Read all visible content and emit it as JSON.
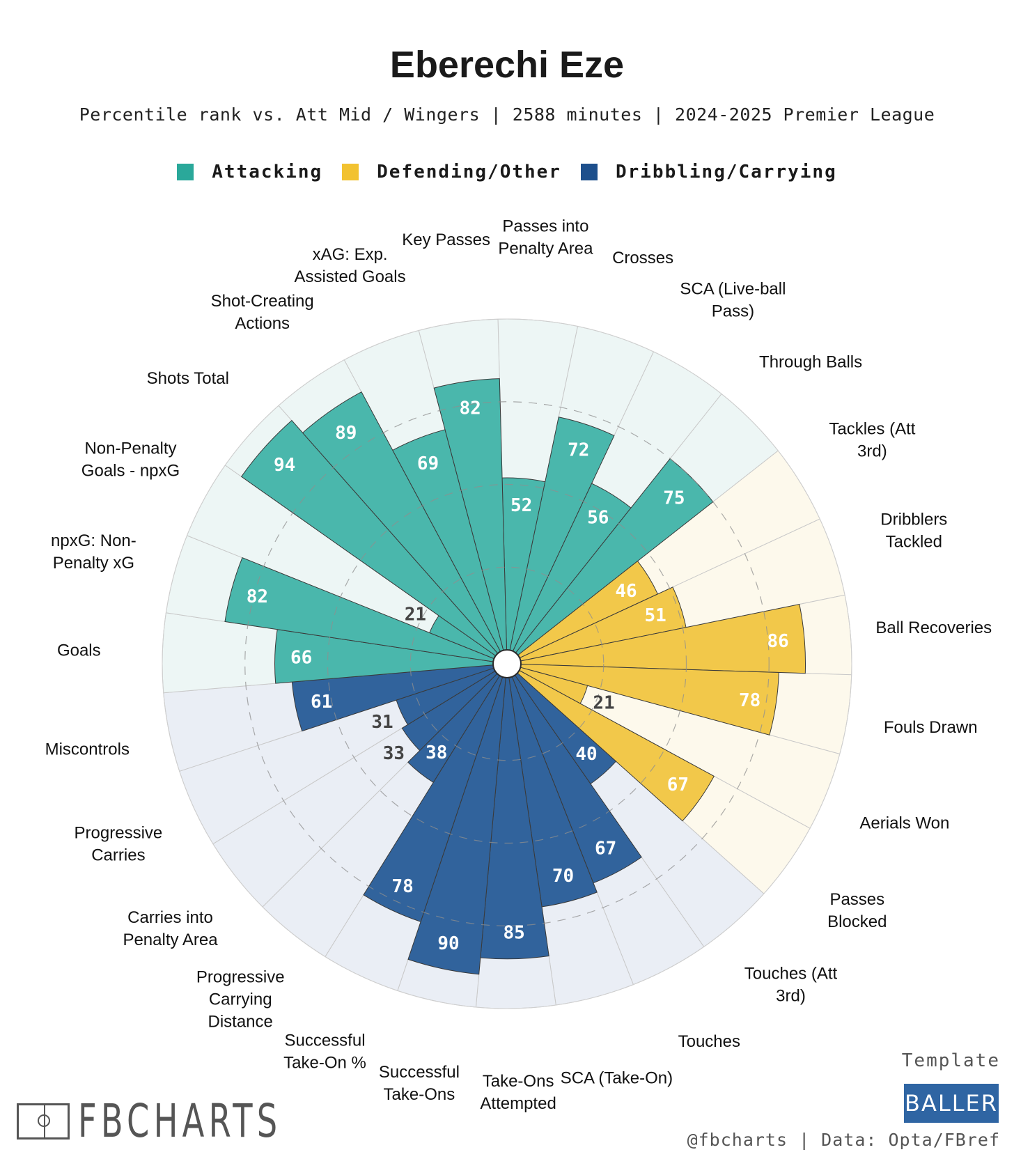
{
  "title": "Eberechi Eze",
  "subtitle": "Percentile rank vs. Att Mid / Wingers | 2588 minutes | 2024-2025 Premier League",
  "legend": [
    {
      "label": "Attacking",
      "color": "#2aa89a"
    },
    {
      "label": "Defending/Other",
      "color": "#f2c230"
    },
    {
      "label": "Dribbling/Carrying",
      "color": "#1d4f8c"
    }
  ],
  "chart_data": {
    "type": "polar-bar",
    "scale": [
      0,
      100
    ],
    "grid_rings": [
      25,
      50,
      75
    ],
    "categories": [
      {
        "label": "Passes into Penalty Area",
        "value": 52,
        "group": "Attacking"
      },
      {
        "label": "Crosses",
        "value": 72,
        "group": "Attacking"
      },
      {
        "label": "SCA (Live-ball Pass)",
        "value": 56,
        "group": "Attacking"
      },
      {
        "label": "Through Balls",
        "value": 75,
        "group": "Attacking"
      },
      {
        "label": "Tackles (Att 3rd)",
        "value": 46,
        "group": "Defending/Other"
      },
      {
        "label": "Dribblers Tackled",
        "value": 51,
        "group": "Defending/Other"
      },
      {
        "label": "Ball Recoveries",
        "value": 86,
        "group": "Defending/Other"
      },
      {
        "label": "Fouls Drawn",
        "value": 78,
        "group": "Defending/Other"
      },
      {
        "label": "Aerials Won",
        "value": 21,
        "group": "Defending/Other"
      },
      {
        "label": "Passes Blocked",
        "value": 67,
        "group": "Defending/Other"
      },
      {
        "label": "Touches (Att 3rd)",
        "value": 40,
        "group": "Dribbling/Carrying"
      },
      {
        "label": "Touches",
        "value": 67,
        "group": "Dribbling/Carrying"
      },
      {
        "label": "SCA (Take-On)",
        "value": 70,
        "group": "Dribbling/Carrying"
      },
      {
        "label": "Take-Ons Attempted",
        "value": 85,
        "group": "Dribbling/Carrying"
      },
      {
        "label": "Successful Take-Ons",
        "value": 90,
        "group": "Dribbling/Carrying"
      },
      {
        "label": "Successful Take-On %",
        "value": 78,
        "group": "Dribbling/Carrying"
      },
      {
        "label": "Progressive Carrying Distance",
        "value": 38,
        "group": "Dribbling/Carrying"
      },
      {
        "label": "Carries into Penalty Area",
        "value": 33,
        "group": "Dribbling/Carrying"
      },
      {
        "label": "Progressive Carries",
        "value": 31,
        "group": "Dribbling/Carrying"
      },
      {
        "label": "Miscontrols",
        "value": 61,
        "group": "Dribbling/Carrying"
      },
      {
        "label": "Goals",
        "value": 66,
        "group": "Attacking"
      },
      {
        "label": "npxG: Non-Penalty xG",
        "value": 82,
        "group": "Attacking"
      },
      {
        "label": "Non-Penalty Goals - npxG",
        "value": 21,
        "group": "Attacking"
      },
      {
        "label": "Shots Total",
        "value": 94,
        "group": "Attacking"
      },
      {
        "label": "Shot-Creating Actions",
        "value": 89,
        "group": "Attacking"
      },
      {
        "label": "xAG: Exp. Assisted Goals",
        "value": 69,
        "group": "Attacking"
      },
      {
        "label": "Key Passes",
        "value": 82,
        "group": "Attacking"
      }
    ]
  },
  "colors": {
    "Attacking": {
      "bar": "#4ab7ac",
      "bg": "#edf6f5"
    },
    "Defending/Other": {
      "bar": "#f2c84a",
      "bg": "#fdf9ec"
    },
    "Dribbling/Carrying": {
      "bar": "#31639c",
      "bg": "#eaeef5"
    }
  },
  "branding": {
    "logo_text": "FBCHARTS",
    "template_label": "Template",
    "template_name": "BALLER",
    "credit": "@fbcharts | Data: Opta/FBref"
  }
}
